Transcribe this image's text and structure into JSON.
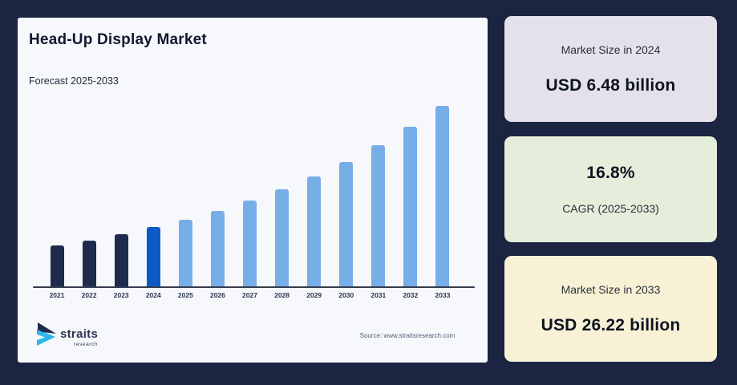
{
  "header": {
    "title": "Head-Up Display Market",
    "subtitle": "Forecast 2025-2033"
  },
  "chart_data": {
    "type": "bar",
    "title": "Head-Up Display Market",
    "unit": "USD billion",
    "categories": [
      "2021",
      "2022",
      "2023",
      "2024",
      "2025",
      "2026",
      "2027",
      "2028",
      "2029",
      "2030",
      "2031",
      "2032",
      "2033"
    ],
    "values": [
      4.07,
      4.75,
      5.55,
      6.48,
      7.57,
      8.84,
      10.33,
      12.06,
      14.09,
      16.45,
      19.22,
      22.45,
      26.22
    ],
    "roles": [
      "historical",
      "historical",
      "historical",
      "base_year",
      "forecast",
      "forecast",
      "forecast",
      "forecast",
      "forecast",
      "forecast",
      "forecast",
      "forecast",
      "forecast"
    ],
    "colors": {
      "historical": "#1e2b4d",
      "base_year": "#0c59c5",
      "forecast": "#77aee7"
    },
    "ylim": [
      0,
      28
    ],
    "grid": false,
    "legend": false,
    "xlabel": "",
    "ylabel": ""
  },
  "cards": [
    {
      "label": "Market Size in 2024",
      "value": "USD 6.48 billion",
      "bg": "#e5e1ea"
    },
    {
      "value": "16.8%",
      "label": "CAGR (2025-2033)",
      "bg": "#e4eeda"
    },
    {
      "label": "Market Size in 2033",
      "value": "USD 26.22 billion",
      "bg": "#f8f1d5"
    }
  ],
  "footer": {
    "source": "Source: www.straitsresearch.com",
    "logo_text": "straits",
    "logo_subtext": "research"
  },
  "brand": {
    "background": "#1b2441",
    "panel_bg": "#f7f8fb",
    "logo_navy": "#1e2b4d",
    "logo_cyan": "#2eb8e9"
  }
}
